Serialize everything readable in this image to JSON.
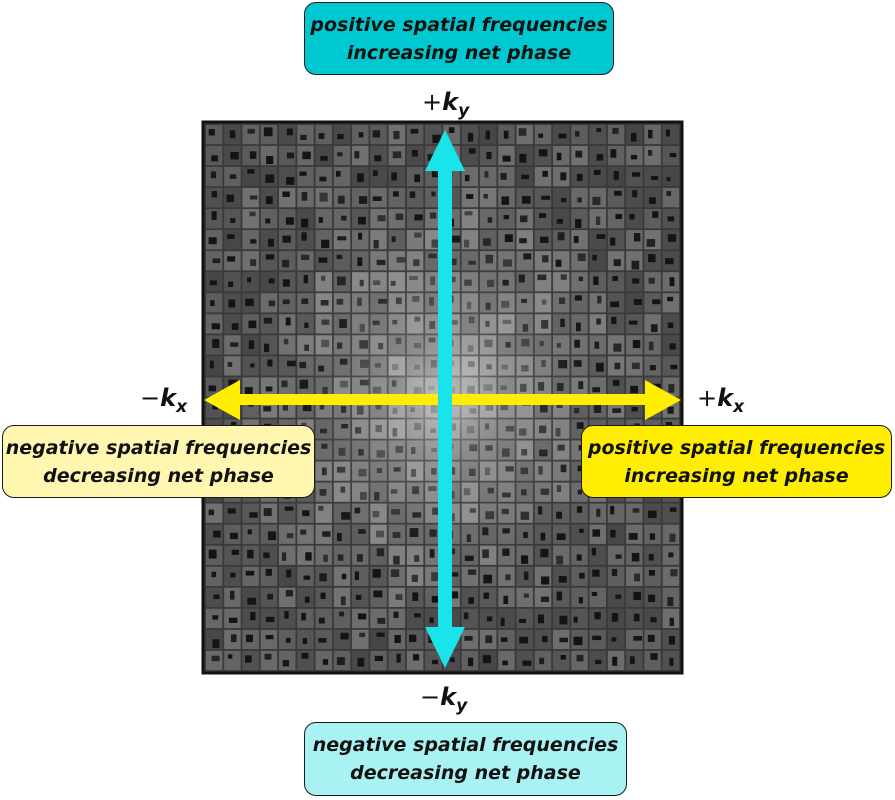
{
  "boxes": {
    "top": {
      "line1": "positive spatial frequencies",
      "line2": "increasing net phase",
      "color": "#00c8d0"
    },
    "bottom": {
      "line1": "negative spatial frequencies",
      "line2": "decreasing net phase",
      "color": "#a8f2f4"
    },
    "left": {
      "line1": "negative spatial frequencies",
      "line2": "decreasing net phase",
      "color": "#fff6b0"
    },
    "right": {
      "line1": "positive spatial frequencies",
      "line2": "increasing net phase",
      "color": "#ffee00"
    }
  },
  "axes": {
    "ky_positive": {
      "sign": "+",
      "symbol": "k",
      "subscript": "y",
      "color": "#19e4ea"
    },
    "ky_negative": {
      "sign": "−",
      "symbol": "k",
      "subscript": "y"
    },
    "kx_negative": {
      "sign": "−",
      "symbol": "k",
      "subscript": "x",
      "color": "#ffee00"
    },
    "kx_positive": {
      "sign": "+",
      "symbol": "k",
      "subscript": "x"
    }
  },
  "grid": {
    "rows": 26,
    "cols": 26
  }
}
